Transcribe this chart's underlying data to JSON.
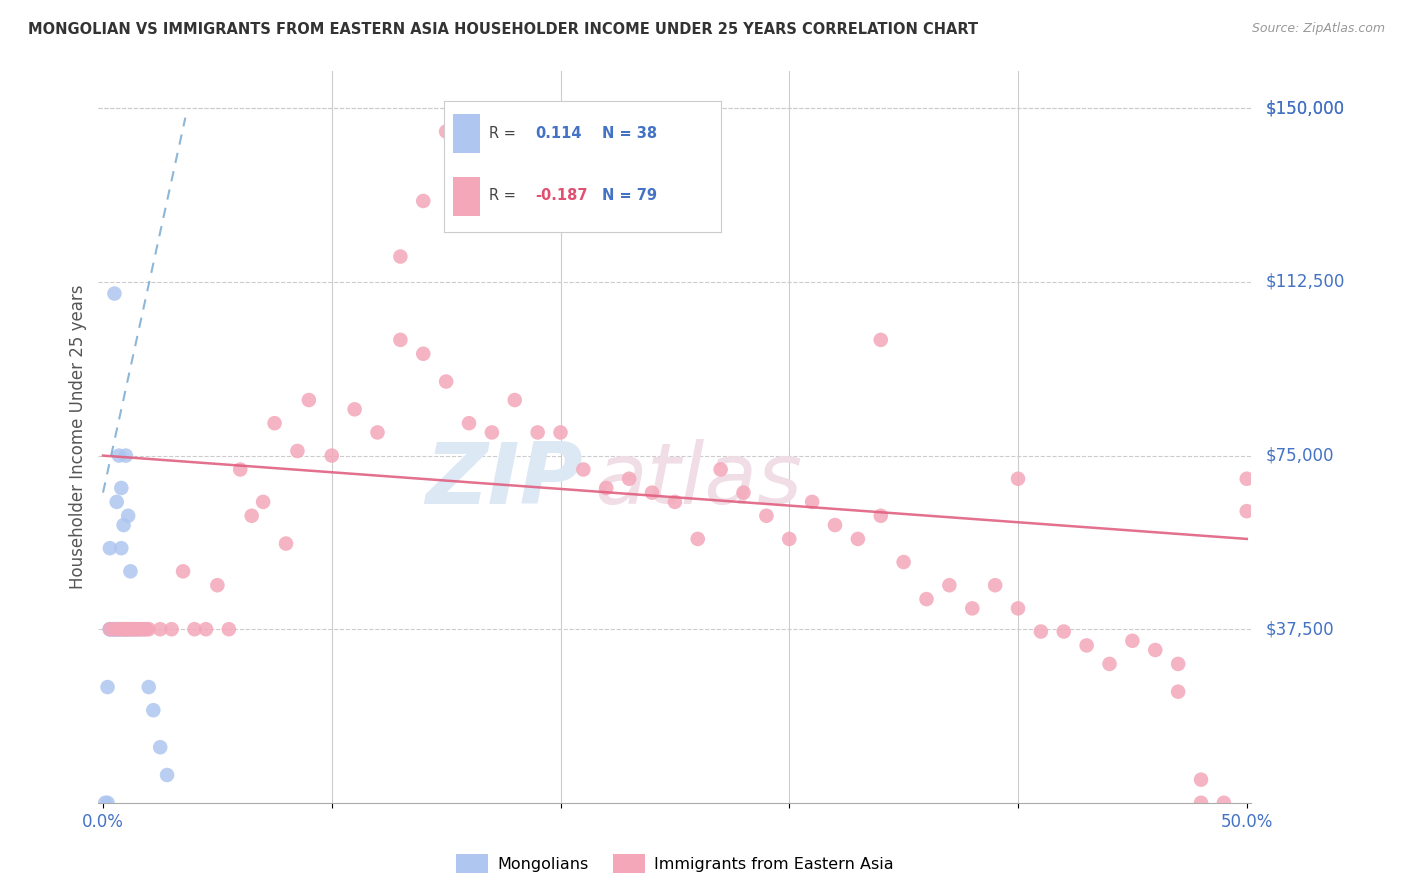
{
  "title": "MONGOLIAN VS IMMIGRANTS FROM EASTERN ASIA HOUSEHOLDER INCOME UNDER 25 YEARS CORRELATION CHART",
  "source": "Source: ZipAtlas.com",
  "ylabel": "Householder Income Under 25 years",
  "ytick_labels": [
    "$150,000",
    "$112,500",
    "$75,000",
    "$37,500"
  ],
  "ytick_values": [
    150000,
    112500,
    75000,
    37500
  ],
  "ylim": [
    0,
    158000
  ],
  "xlim": [
    -0.002,
    0.502
  ],
  "mongolian_color": "#aec6f0",
  "eastern_asia_color": "#f4a7b9",
  "mongolian_R": 0.114,
  "mongolian_N": 38,
  "eastern_asia_R": -0.187,
  "eastern_asia_N": 79,
  "legend_label_mongolian": "Mongolians",
  "legend_label_eastern": "Immigrants from Eastern Asia",
  "watermark_zip": "ZIP",
  "watermark_atlas": "atlas",
  "mon_line_x": [
    0.0,
    0.036
  ],
  "mon_line_y": [
    67000,
    148000
  ],
  "ea_line_x": [
    0.0,
    0.5
  ],
  "ea_line_y": [
    75000,
    57000
  ],
  "mon_x": [
    0.001,
    0.002,
    0.002,
    0.003,
    0.003,
    0.003,
    0.004,
    0.004,
    0.005,
    0.005,
    0.005,
    0.006,
    0.006,
    0.006,
    0.007,
    0.007,
    0.007,
    0.008,
    0.008,
    0.008,
    0.009,
    0.009,
    0.01,
    0.01,
    0.01,
    0.011,
    0.011,
    0.012,
    0.012,
    0.013,
    0.014,
    0.015,
    0.016,
    0.018,
    0.02,
    0.022,
    0.025,
    0.028
  ],
  "mon_y": [
    0,
    0,
    25000,
    37500,
    37500,
    55000,
    37500,
    37500,
    37500,
    37500,
    110000,
    37500,
    37500,
    65000,
    37500,
    37500,
    75000,
    37500,
    55000,
    68000,
    37500,
    60000,
    37500,
    37500,
    75000,
    37500,
    62000,
    37500,
    50000,
    37500,
    37500,
    37500,
    37500,
    37500,
    25000,
    20000,
    12000,
    6000
  ],
  "ea_x": [
    0.003,
    0.005,
    0.007,
    0.008,
    0.009,
    0.01,
    0.011,
    0.012,
    0.013,
    0.014,
    0.015,
    0.016,
    0.017,
    0.018,
    0.019,
    0.02,
    0.025,
    0.03,
    0.035,
    0.04,
    0.045,
    0.05,
    0.055,
    0.06,
    0.065,
    0.07,
    0.075,
    0.08,
    0.085,
    0.09,
    0.1,
    0.11,
    0.12,
    0.13,
    0.14,
    0.15,
    0.16,
    0.17,
    0.18,
    0.19,
    0.2,
    0.21,
    0.22,
    0.23,
    0.24,
    0.25,
    0.26,
    0.27,
    0.28,
    0.29,
    0.3,
    0.31,
    0.32,
    0.33,
    0.34,
    0.35,
    0.36,
    0.37,
    0.38,
    0.39,
    0.4,
    0.41,
    0.42,
    0.43,
    0.44,
    0.45,
    0.46,
    0.47,
    0.48,
    0.49,
    0.5,
    0.5,
    0.14,
    0.15,
    0.34,
    0.4,
    0.47,
    0.48,
    0.13
  ],
  "ea_y": [
    37500,
    37500,
    37500,
    37500,
    37500,
    37500,
    37500,
    37500,
    37500,
    37500,
    37500,
    37500,
    37500,
    37500,
    37500,
    37500,
    37500,
    37500,
    50000,
    37500,
    37500,
    47000,
    37500,
    72000,
    62000,
    65000,
    82000,
    56000,
    76000,
    87000,
    75000,
    85000,
    80000,
    100000,
    97000,
    91000,
    82000,
    80000,
    87000,
    80000,
    80000,
    72000,
    68000,
    70000,
    67000,
    65000,
    57000,
    72000,
    67000,
    62000,
    57000,
    65000,
    60000,
    57000,
    62000,
    52000,
    44000,
    47000,
    42000,
    47000,
    42000,
    37000,
    37000,
    34000,
    30000,
    35000,
    33000,
    30000,
    0,
    0,
    70000,
    63000,
    130000,
    145000,
    100000,
    70000,
    24000,
    5000,
    118000
  ]
}
